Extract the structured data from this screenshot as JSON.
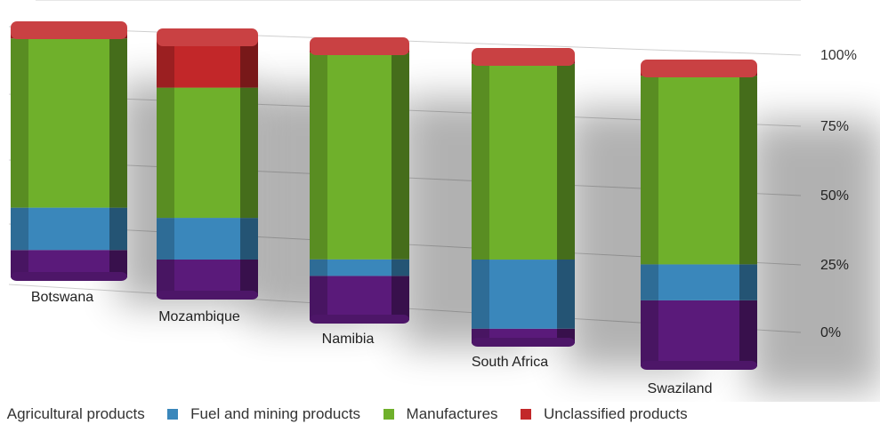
{
  "chart_data": {
    "type": "bar",
    "stacked": true,
    "three_d": true,
    "grid": true,
    "legend_position": "bottom",
    "categories": [
      "Botswana",
      "Mozambique",
      "Namibia",
      "South Africa",
      "Swaziland"
    ],
    "y_ticks": [
      "0%",
      "25%",
      "50%",
      "75%",
      "100%"
    ],
    "ylim": [
      0,
      100
    ],
    "series": [
      {
        "name": "Agricultural products",
        "color": "#5a1a7a",
        "values": [
          11,
          14,
          16,
          5,
          22
        ]
      },
      {
        "name": "Fuel and mining products",
        "color": "#3a87bb",
        "values": [
          17,
          16,
          6,
          24,
          12
        ]
      },
      {
        "name": "Manufactures",
        "color": "#6fb02b",
        "values": [
          68,
          50,
          75,
          68,
          63
        ]
      },
      {
        "name": "Unclassified products",
        "color": "#c22729",
        "values": [
          4,
          20,
          3,
          3,
          3
        ]
      }
    ]
  },
  "legend": {
    "items": [
      {
        "label": "Agricultural products",
        "color": "#5a1a7a"
      },
      {
        "label": "Fuel and mining products",
        "color": "#3a87bb"
      },
      {
        "label": "Manufactures",
        "color": "#6fb02b"
      },
      {
        "label": "Unclassified products",
        "color": "#c22729"
      }
    ]
  }
}
